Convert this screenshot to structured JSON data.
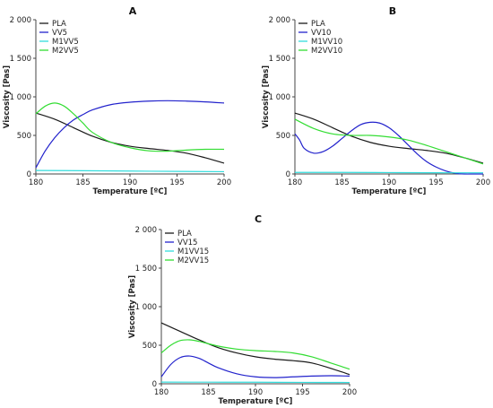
{
  "colors": {
    "PLA": "#1a1a1a",
    "VV": "#2222cc",
    "M1": "#33dddd",
    "M2": "#33dd33"
  },
  "chart_data": [
    {
      "type": "line",
      "panel_label": "A",
      "xlabel": "Temperature [ºC]",
      "ylabel": "Viscosity [Pas]",
      "xlim": [
        180,
        200
      ],
      "ylim": [
        0,
        2000
      ],
      "xticks": [
        180,
        185,
        190,
        195,
        200
      ],
      "xtick_labels": [
        "180",
        "185",
        "190",
        "195",
        "200"
      ],
      "yticks": [
        0,
        500,
        1000,
        1500,
        2000
      ],
      "ytick_labels": [
        "0",
        "500",
        "1 000",
        "1 500",
        "2 000"
      ],
      "legend_position": "top-left",
      "series": [
        {
          "name": "PLA",
          "color_key": "PLA",
          "x": [
            180,
            182,
            184,
            186,
            188,
            190,
            192,
            194,
            196,
            198,
            200
          ],
          "y": [
            790,
            710,
            600,
            490,
            410,
            360,
            330,
            305,
            270,
            210,
            140
          ]
        },
        {
          "name": "VV5",
          "color_key": "VV",
          "x": [
            180,
            181,
            182,
            183,
            184,
            185,
            186,
            188,
            190,
            192,
            194,
            196,
            198,
            200
          ],
          "y": [
            80,
            300,
            470,
            600,
            700,
            770,
            830,
            900,
            930,
            945,
            950,
            945,
            935,
            920
          ]
        },
        {
          "name": "M1VV5",
          "color_key": "M1",
          "x": [
            180,
            185,
            190,
            195,
            200
          ],
          "y": [
            45,
            42,
            38,
            33,
            30
          ]
        },
        {
          "name": "M2VV5",
          "color_key": "M2",
          "x": [
            180,
            181,
            182,
            183,
            184,
            185,
            186,
            188,
            190,
            192,
            194,
            196,
            198,
            200
          ],
          "y": [
            780,
            880,
            920,
            880,
            780,
            660,
            540,
            410,
            340,
            300,
            295,
            310,
            320,
            320
          ]
        }
      ]
    },
    {
      "type": "line",
      "panel_label": "B",
      "xlabel": "Temperature [ºC]",
      "ylabel": "Viscosity [Pas]",
      "xlim": [
        180,
        200
      ],
      "ylim": [
        0,
        2000
      ],
      "xticks": [
        180,
        185,
        190,
        195,
        200
      ],
      "xtick_labels": [
        "180",
        "185",
        "190",
        "195",
        "200"
      ],
      "yticks": [
        0,
        500,
        1000,
        1500,
        2000
      ],
      "ytick_labels": [
        "0",
        "500",
        "1 000",
        "1 500",
        "2 000"
      ],
      "legend_position": "top-left",
      "series": [
        {
          "name": "PLA",
          "color_key": "PLA",
          "x": [
            180,
            182,
            184,
            186,
            188,
            190,
            192,
            194,
            196,
            198,
            200
          ],
          "y": [
            790,
            710,
            600,
            490,
            410,
            360,
            330,
            305,
            270,
            210,
            140
          ]
        },
        {
          "name": "VV10",
          "color_key": "VV",
          "x": [
            180,
            180.5,
            181,
            182,
            183,
            184,
            185,
            186,
            187,
            188,
            189,
            190,
            191,
            192,
            193,
            194,
            195,
            196,
            197,
            198,
            199,
            200
          ],
          "y": [
            520,
            440,
            330,
            270,
            290,
            360,
            460,
            560,
            640,
            670,
            660,
            600,
            500,
            380,
            260,
            160,
            90,
            40,
            10,
            0,
            0,
            0
          ]
        },
        {
          "name": "M1VV10",
          "color_key": "M1",
          "x": [
            180,
            185,
            190,
            195,
            200
          ],
          "y": [
            20,
            20,
            18,
            16,
            15
          ]
        },
        {
          "name": "M2VV10",
          "color_key": "M2",
          "x": [
            180,
            182,
            184,
            186,
            188,
            190,
            192,
            194,
            196,
            198,
            200
          ],
          "y": [
            710,
            590,
            520,
            500,
            500,
            480,
            440,
            370,
            290,
            210,
            130
          ]
        }
      ]
    },
    {
      "type": "line",
      "panel_label": "C",
      "xlabel": "Temperature [ºC]",
      "ylabel": "Viscosity [Pas]",
      "xlim": [
        180,
        200
      ],
      "ylim": [
        0,
        2000
      ],
      "xticks": [
        180,
        185,
        190,
        195,
        200
      ],
      "xtick_labels": [
        "180",
        "185",
        "190",
        "195",
        "200"
      ],
      "yticks": [
        0,
        500,
        1000,
        1500,
        2000
      ],
      "ytick_labels": [
        "0",
        "500",
        "1 000",
        "1 500",
        "2 000"
      ],
      "legend_position": "top-left",
      "series": [
        {
          "name": "PLA",
          "color_key": "PLA",
          "x": [
            180,
            182,
            184,
            186,
            188,
            190,
            192,
            194,
            196,
            198,
            200
          ],
          "y": [
            790,
            680,
            570,
            470,
            400,
            350,
            320,
            300,
            270,
            200,
            120
          ]
        },
        {
          "name": "VV15",
          "color_key": "VV",
          "x": [
            180,
            181,
            182,
            183,
            184,
            185,
            186,
            188,
            190,
            192,
            194,
            196,
            198,
            200
          ],
          "y": [
            90,
            250,
            340,
            360,
            330,
            270,
            210,
            130,
            90,
            80,
            90,
            100,
            105,
            100
          ]
        },
        {
          "name": "M1VV15",
          "color_key": "M1",
          "x": [
            180,
            185,
            190,
            195,
            200
          ],
          "y": [
            22,
            21,
            20,
            18,
            17
          ]
        },
        {
          "name": "M2VV15",
          "color_key": "M2",
          "x": [
            180,
            181,
            182,
            183,
            184,
            186,
            188,
            190,
            192,
            194,
            196,
            198,
            200
          ],
          "y": [
            400,
            500,
            560,
            570,
            550,
            490,
            450,
            430,
            420,
            400,
            350,
            270,
            190
          ]
        }
      ]
    }
  ]
}
